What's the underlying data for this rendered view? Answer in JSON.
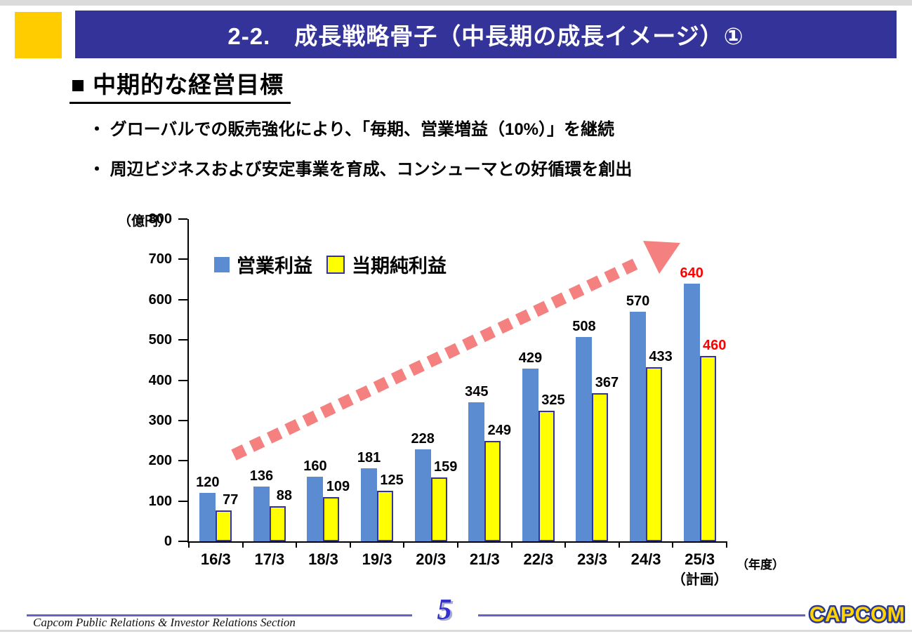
{
  "colors": {
    "header_bar": "#333399",
    "accent_square": "#FFCC00",
    "arrow": "#F48080",
    "highlight_value": "#FF0000",
    "footer_line": "#6464C8",
    "page_number_blue": "#3333CC",
    "logo_fill": "#FFD400",
    "logo_outline": "#2B3990",
    "axis_black": "#000000"
  },
  "slide": {
    "header_title": "2-2.　成長戦略骨子（中長期の成長イメージ）①",
    "section_heading": "■ 中期的な経営目標",
    "bullets": [
      "・ グローバルでの販売強化により、「毎期、営業増益（10%）」を継続",
      "・ 周辺ビジネスおよび安定事業を育成、コンシューマとの好循環を創出"
    ]
  },
  "chart_data": {
    "type": "bar",
    "title": "",
    "unit_label": "（億円）",
    "x_axis_note": "（年度）",
    "categories": [
      "16/3",
      "17/3",
      "18/3",
      "19/3",
      "20/3",
      "21/3",
      "22/3",
      "23/3",
      "24/3",
      "25/3"
    ],
    "last_category_note": "（計画）",
    "series": [
      {
        "name": "営業利益",
        "color": "#5B8BD0",
        "border_color": "",
        "values": [
          120,
          136,
          160,
          181,
          228,
          345,
          429,
          508,
          570,
          640
        ]
      },
      {
        "name": "当期純利益",
        "color": "#FFFF00",
        "border_color": "#333399",
        "values": [
          77,
          88,
          109,
          125,
          159,
          249,
          325,
          367,
          433,
          460
        ]
      }
    ],
    "ylim": [
      0,
      800
    ],
    "ytick_step": 100,
    "grid": false,
    "legend_position": "inside-top-left",
    "value_labels": true,
    "last_value_label_color": "#FF0000",
    "trend_arrow": "dashed pink arrow rising toward upper right"
  },
  "footer": {
    "left_text": "Capcom Public Relations & Investor Relations Section",
    "page_number": "5",
    "logo_text": "CAPCOM"
  }
}
